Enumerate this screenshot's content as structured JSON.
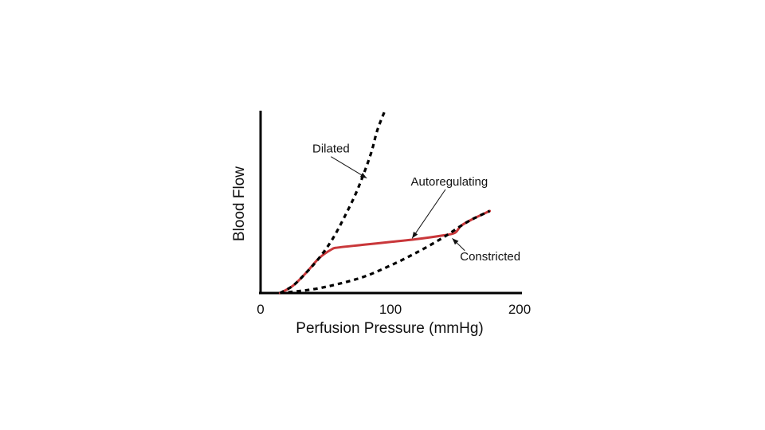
{
  "chart_data": {
    "type": "line",
    "xlabel": "Perfusion Pressure (mmHg)",
    "ylabel": "Blood Flow",
    "xlim": [
      0,
      200
    ],
    "ylim": [
      0,
      100
    ],
    "x_ticks": [
      "0",
      "100",
      "200"
    ],
    "grid": false,
    "legend": "none",
    "series": [
      {
        "name": "Dilated",
        "style": "dashed",
        "color": "#000000",
        "points": [
          [
            15,
            0
          ],
          [
            25,
            4
          ],
          [
            35,
            11
          ],
          [
            45,
            19
          ],
          [
            55,
            29
          ],
          [
            65,
            42
          ],
          [
            75,
            57
          ],
          [
            85,
            76
          ],
          [
            90,
            89
          ],
          [
            96,
            100
          ]
        ]
      },
      {
        "name": "Constricted",
        "style": "dashed",
        "color": "#000000",
        "points": [
          [
            15,
            0
          ],
          [
            40,
            2
          ],
          [
            60,
            5
          ],
          [
            80,
            9
          ],
          [
            100,
            15
          ],
          [
            120,
            22
          ],
          [
            140,
            30
          ],
          [
            155,
            37
          ],
          [
            165,
            41
          ],
          [
            177,
            45
          ]
        ]
      },
      {
        "name": "Autoregulating",
        "style": "solid",
        "color": "#c9373a",
        "points": [
          [
            15,
            0
          ],
          [
            25,
            4
          ],
          [
            35,
            11
          ],
          [
            45,
            19
          ],
          [
            55,
            24
          ],
          [
            60,
            25
          ],
          [
            80,
            26.5
          ],
          [
            100,
            28
          ],
          [
            120,
            29.5
          ],
          [
            140,
            31.5
          ],
          [
            150,
            33
          ],
          [
            155,
            37
          ],
          [
            165,
            41
          ],
          [
            177,
            45
          ]
        ]
      }
    ],
    "annotations": [
      {
        "text": "Dilated",
        "x": 40,
        "y": 77,
        "arrow_to": [
          82,
          63
        ]
      },
      {
        "text": "Autoregulating",
        "x": 116,
        "y": 59,
        "arrow_to": [
          117,
          30
        ]
      },
      {
        "text": "Constricted",
        "x": 154,
        "y": 18,
        "arrow_to": [
          148,
          30
        ]
      }
    ]
  }
}
